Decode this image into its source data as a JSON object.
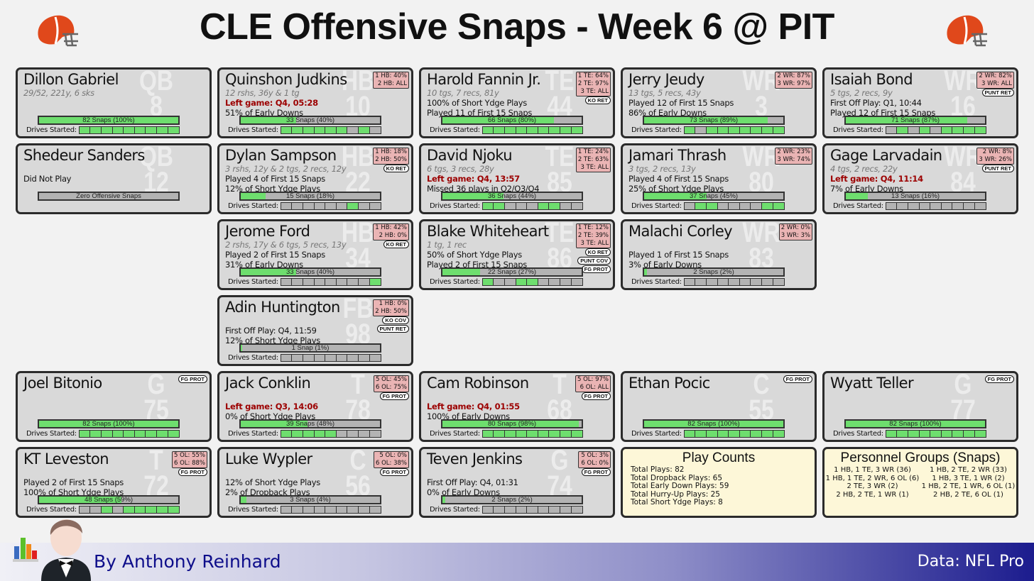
{
  "title": "CLE Offensive Snaps - Week 6 @ PIT",
  "colors": {
    "card_bg": "#d9d9d9",
    "snap_fill": "#6ede6e",
    "empty": "#b3b3b3",
    "badge": "#eab4b4",
    "left_game": "#9c0000",
    "summary_bg": "#fdf7d8",
    "helmet": "#e0481b"
  },
  "icons": {
    "header": "browns-helmet-icon",
    "footer": "waiter-chart-logo"
  },
  "drives_label": "Drives Started:",
  "grid": [
    [
      {
        "name": "Dillon Gabriel",
        "pos": "QB",
        "num": "8",
        "lines": [
          {
            "text": "29/52, 221y, 6 sks"
          },
          null,
          null
        ],
        "snaps": "82 Snaps (100%)",
        "pct": 100,
        "drives": "111111111"
      },
      {
        "name": "Quinshon Judkins",
        "pos": "HB",
        "num": "10",
        "badge": [
          "1 HB: 40%",
          "2 HB: ALL"
        ],
        "lines": [
          {
            "text": "12 rshs, 36y & 1 tg"
          },
          {
            "text": "Left game: Q4, 05:28",
            "red": true
          },
          {
            "text": "51% of Early Downs"
          }
        ],
        "snaps": "33 Snaps (40%)",
        "pct": 40,
        "drives": "111111010"
      },
      {
        "name": "Harold Fannin Jr.",
        "pos": "TE",
        "num": "44",
        "badge": [
          "1 TE: 64%",
          "2 TE: 97%",
          "3 TE: ALL"
        ],
        "tags": [
          "KO RET"
        ],
        "lines": [
          {
            "text": "10 tgs, 7 recs, 81y"
          },
          {
            "text": "100% of Short Ydge Plays"
          },
          {
            "text": "Played 11 of First 15 Snaps"
          }
        ],
        "snaps": "66 Snaps (80%)",
        "pct": 80,
        "drives": "111111111"
      },
      {
        "name": "Jerry Jeudy",
        "pos": "WR",
        "num": "3",
        "badge": [
          "2 WR: 87%",
          "3 WR: 97%"
        ],
        "lines": [
          {
            "text": "13 tgs, 5 recs, 43y"
          },
          {
            "text": "Played 12 of First 15 Snaps"
          },
          {
            "text": "86% of Early Downs"
          }
        ],
        "snaps": "73 Snaps (89%)",
        "pct": 89,
        "drives": "101111111"
      },
      {
        "name": "Isaiah Bond",
        "pos": "WR",
        "num": "16",
        "badge": [
          "2 WR: 82%",
          "3 WR: ALL"
        ],
        "tags": [
          "PUNT RET"
        ],
        "lines": [
          {
            "text": "5 tgs, 2 recs, 9y"
          },
          {
            "text": "First Off Play: Q1, 10:44"
          },
          {
            "text": "Played 12 of First 15 Snaps"
          }
        ],
        "snaps": "71 Snaps (87%)",
        "pct": 87,
        "drives": "010101111"
      }
    ],
    [
      {
        "name": "Shedeur Sanders",
        "pos": "QB",
        "num": "12",
        "lines": [
          null,
          {
            "text": "Did Not Play"
          },
          null
        ],
        "snaps": "Zero Offensive Snaps",
        "pct": 0
      },
      {
        "name": "Dylan Sampson",
        "pos": "HB",
        "num": "22",
        "badge": [
          "1 HB: 18%",
          "2 HB: 50%"
        ],
        "tags": [
          "KO RET"
        ],
        "lines": [
          {
            "text": "3 rshs, 12y & 2 tgs, 2 recs, 12y"
          },
          {
            "text": "Played 4 of First 15 Snaps"
          },
          {
            "text": "12% of Short Ydge Plays"
          }
        ],
        "snaps": "15 Snaps (18%)",
        "pct": 18,
        "drives": "000000100"
      },
      {
        "name": "David Njoku",
        "pos": "TE",
        "num": "85",
        "badge": [
          "1 TE: 24%",
          "2 TE: 63%",
          "3 TE: ALL"
        ],
        "lines": [
          {
            "text": "6 tgs, 3 recs, 28y"
          },
          {
            "text": "Left game: Q4, 13:57",
            "red": true
          },
          {
            "text": "Missed 36 plays in Q2/Q3/Q4"
          }
        ],
        "snaps": "36 Snaps (44%)",
        "pct": 44,
        "drives": "110001100"
      },
      {
        "name": "Jamari Thrash",
        "pos": "WR",
        "num": "80",
        "badge": [
          "2 WR: 23%",
          "3 WR: 74%"
        ],
        "lines": [
          {
            "text": "3 tgs, 2 recs, 13y"
          },
          {
            "text": "Played 4 of First 15 Snaps"
          },
          {
            "text": "25% of Short Ydge Plays"
          }
        ],
        "snaps": "37 Snaps (45%)",
        "pct": 45,
        "drives": "011000011"
      },
      {
        "name": "Gage Larvadain",
        "pos": "WR",
        "num": "84",
        "badge": [
          "2 WR:  8%",
          "3 WR: 26%"
        ],
        "tags": [
          "PUNT RET"
        ],
        "lines": [
          {
            "text": "4 tgs, 2 recs, 22y"
          },
          {
            "text": "Left game: Q4, 11:14",
            "red": true
          },
          {
            "text": "7% of Early Downs"
          }
        ],
        "snaps": "13 Snaps (16%)",
        "pct": 16,
        "drives": "000000000"
      }
    ],
    [
      null,
      {
        "name": "Jerome Ford",
        "pos": "HB",
        "num": "34",
        "badge": [
          "1 HB: 42%",
          "2 HB:  0%"
        ],
        "tags": [
          "KO RET"
        ],
        "lines": [
          {
            "text": "2 rshs, 17y & 6 tgs, 5 recs, 13y"
          },
          {
            "text": "Played 2 of First 15 Snaps"
          },
          {
            "text": "31% of Early Downs"
          }
        ],
        "snaps": "33 Snaps (40%)",
        "pct": 40,
        "drives": "000000001"
      },
      {
        "name": "Blake Whiteheart",
        "pos": "TE",
        "num": "86",
        "badge": [
          "1 TE: 12%",
          "2 TE: 39%",
          "3 TE: ALL"
        ],
        "tags": [
          "KO RET",
          "PUNT COV",
          "FG PROT"
        ],
        "lines": [
          {
            "text": "1 tg, 1 rec"
          },
          {
            "text": "50% of Short Ydge Plays"
          },
          {
            "text": "Played 2 of First 15 Snaps"
          }
        ],
        "snaps": "22 Snaps (27%)",
        "pct": 27,
        "drives": "100110000"
      },
      {
        "name": "Malachi Corley",
        "pos": "WR",
        "num": "83",
        "badge": [
          "2 WR:  0%",
          "3 WR:  3%"
        ],
        "lines": [
          null,
          {
            "text": "Played 1 of First 15 Snaps"
          },
          {
            "text": "3% of Early Downs"
          }
        ],
        "snaps": "2 Snaps (2%)",
        "pct": 2,
        "drives": "000000000"
      },
      null
    ],
    [
      null,
      {
        "name": "Adin Huntington",
        "pos": "FB",
        "num": "98",
        "badge": [
          "1 HB:  0%",
          "2 HB: 50%"
        ],
        "tags": [
          "KO COV",
          "PUNT RET"
        ],
        "lines": [
          null,
          {
            "text": "First Off Play: Q4, 11:59"
          },
          {
            "text": "12% of Short Ydge Plays"
          }
        ],
        "snaps": "1 Snap (1%)",
        "pct": 1,
        "drives": "000000000"
      },
      null,
      null,
      null
    ],
    [
      {
        "name": "Joel Bitonio",
        "pos": "G",
        "num": "75",
        "tags": [
          "FG PROT"
        ],
        "lines": [
          null,
          null,
          null
        ],
        "snaps": "82 Snaps (100%)",
        "pct": 100,
        "drives": "111111111"
      },
      {
        "name": "Jack Conklin",
        "pos": "T",
        "num": "78",
        "badge": [
          "5 OL: 45%",
          "6 OL: 75%"
        ],
        "tags": [
          "FG PROT"
        ],
        "lines": [
          null,
          {
            "text": "Left game: Q3, 14:06",
            "red": true
          },
          {
            "text": "0% of Short Ydge Plays"
          }
        ],
        "snaps": "39 Snaps (48%)",
        "pct": 48,
        "drives": "111110000"
      },
      {
        "name": "Cam Robinson",
        "pos": "T",
        "num": "68",
        "badge": [
          "5 OL: 97%",
          "6 OL: ALL"
        ],
        "tags": [
          "FG PROT"
        ],
        "lines": [
          null,
          {
            "text": "Left game: Q4, 01:55",
            "red": true
          },
          {
            "text": "100% of Early Downs"
          }
        ],
        "snaps": "80 Snaps (98%)",
        "pct": 98,
        "drives": "111111111"
      },
      {
        "name": "Ethan Pocic",
        "pos": "C",
        "num": "55",
        "tags": [
          "FG PROT"
        ],
        "lines": [
          null,
          null,
          null
        ],
        "snaps": "82 Snaps (100%)",
        "pct": 100,
        "drives": "111111111"
      },
      {
        "name": "Wyatt Teller",
        "pos": "G",
        "num": "77",
        "tags": [
          "FG PROT"
        ],
        "lines": [
          null,
          null,
          null
        ],
        "snaps": "82 Snaps (100%)",
        "pct": 100,
        "drives": "111111111"
      }
    ],
    [
      {
        "name": "KT Leveston",
        "pos": "T",
        "num": "72",
        "badge": [
          "5 OL: 55%",
          "6 OL: 88%"
        ],
        "tags": [
          "FG PROT"
        ],
        "lines": [
          null,
          {
            "text": "Played 2 of First 15 Snaps"
          },
          {
            "text": "100% of Short Ydge Plays"
          }
        ],
        "snaps": "48 Snaps (59%)",
        "pct": 59,
        "drives": "001011111"
      },
      {
        "name": "Luke Wypler",
        "pos": "C",
        "num": "56",
        "badge": [
          "5 OL:  0%",
          "6 OL: 38%"
        ],
        "tags": [
          "FG PROT"
        ],
        "lines": [
          null,
          {
            "text": "12% of Short Ydge Plays"
          },
          {
            "text": "2% of Dropback Plays"
          }
        ],
        "snaps": "3 Snaps (4%)",
        "pct": 4,
        "drives": "000000000"
      },
      {
        "name": "Teven Jenkins",
        "pos": "G",
        "num": "74",
        "badge": [
          "5 OL:  3%",
          "6 OL:  0%"
        ],
        "tags": [
          "FG PROT"
        ],
        "lines": [
          null,
          {
            "text": "First Off Play: Q4, 01:31"
          },
          {
            "text": "0% of Early Downs"
          }
        ],
        "snaps": "2 Snaps (2%)",
        "pct": 2,
        "drives": "000000000"
      },
      null,
      null
    ]
  ],
  "play_counts": {
    "title": "Play Counts",
    "items": [
      "Total Plays: 82",
      "Total Dropback Plays: 65",
      "Total Early Down Plays: 59",
      "Total Hurry-Up Plays: 25",
      "Total Short Ydge Plays: 8"
    ]
  },
  "personnel": {
    "title": "Personnel Groups (Snaps)",
    "items": [
      "1 HB, 1 TE, 3 WR (36)",
      "1 HB, 2 TE, 2 WR (33)",
      "1 HB, 1 TE, 2 WR, 6 OL (6)",
      "1 HB, 3 TE, 1 WR (2)",
      "2 TE, 3 WR (2)",
      "1 HB, 2 TE, 1 WR, 6 OL (1)",
      "2 HB, 2 TE, 1 WR (1)",
      "2 HB, 2 TE, 6 OL (1)"
    ]
  },
  "footer": {
    "byline": "By Anthony Reinhard",
    "source": "Data: NFL Pro"
  }
}
